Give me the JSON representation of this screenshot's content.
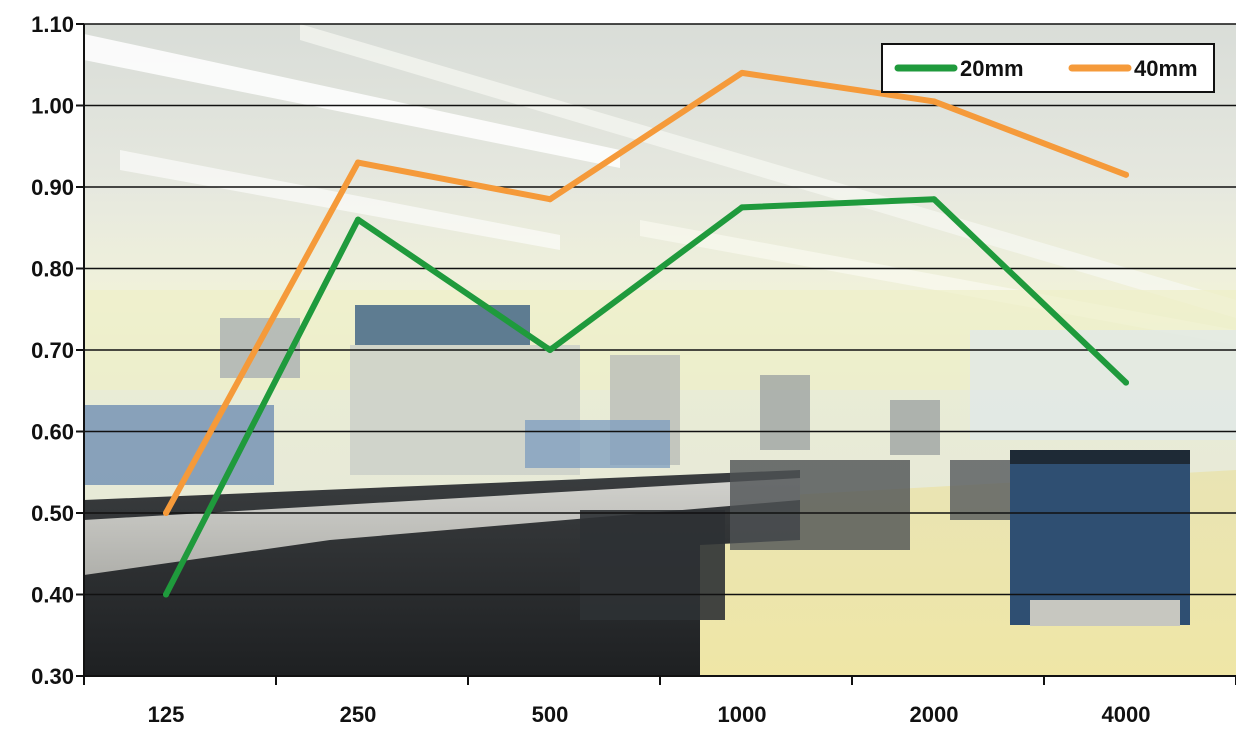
{
  "chart_data": {
    "type": "line",
    "categories": [
      "125",
      "250",
      "500",
      "1000",
      "2000",
      "4000"
    ],
    "series": [
      {
        "name": "20mm",
        "values": [
          0.4,
          0.86,
          0.7,
          0.875,
          0.885,
          0.66
        ],
        "color": "#1f9a3c"
      },
      {
        "name": "40mm",
        "values": [
          0.5,
          0.93,
          0.885,
          1.04,
          1.005,
          0.915
        ],
        "color": "#f59a3a"
      }
    ],
    "y_ticks": [
      "0.30",
      "0.40",
      "0.50",
      "0.60",
      "0.70",
      "0.80",
      "0.90",
      "1.00",
      "1.10"
    ],
    "ylim": [
      0.3,
      1.1
    ],
    "grid": true,
    "legend_position": "top-right",
    "title": "",
    "xlabel": "",
    "ylabel": ""
  }
}
